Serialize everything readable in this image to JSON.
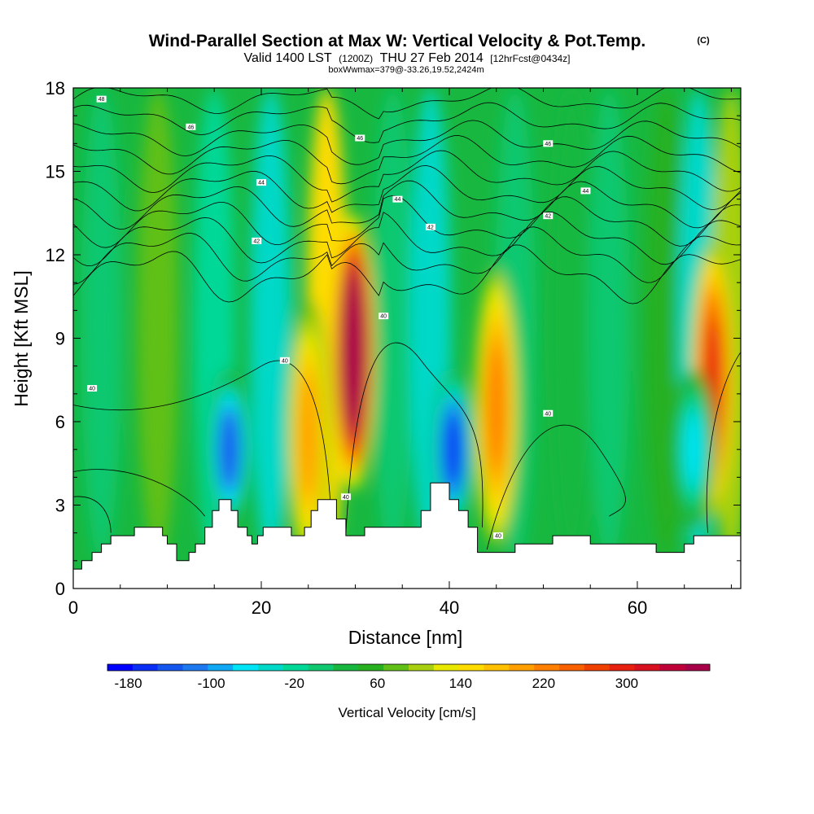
{
  "chart_data": {
    "type": "heatmap",
    "title": "Wind-Parallel Section at Max W: Vertical Velocity & Pot.Temp.",
    "copyright": "(C)",
    "subtitle": {
      "valid": "Valid 1400 LST",
      "utc": "(1200Z)",
      "date": "THU 27 Feb 2014",
      "forecast": "[12hrFcst@0434z]"
    },
    "box_info": "boxWwmax=379@-33.26,19.52,2424m",
    "xlabel": "Distance [nm]",
    "ylabel": "Height [Kft MSL]",
    "xlim": [
      0,
      71
    ],
    "ylim": [
      0,
      18
    ],
    "x_ticks": [
      0,
      20,
      40,
      60
    ],
    "y_ticks": [
      0,
      3,
      6,
      9,
      12,
      15,
      18
    ],
    "colorbar": {
      "title": "Vertical Velocity [cm/s]",
      "min": -200,
      "max": 380,
      "step": 20,
      "tick_values": [
        -180,
        -100,
        -20,
        60,
        140,
        220,
        300
      ],
      "colors": [
        "#0000ff",
        "#0a2ef5",
        "#1456ee",
        "#1e78f0",
        "#10a8f5",
        "#00e4f5",
        "#00d8c8",
        "#00d898",
        "#10c870",
        "#18b840",
        "#28b020",
        "#60c018",
        "#a8d010",
        "#e8e800",
        "#ffdc00",
        "#ffc000",
        "#ffa000",
        "#ff8000",
        "#f86000",
        "#f04000",
        "#e82010",
        "#d81020",
        "#c00038",
        "#a80048"
      ]
    },
    "terrain": [
      [
        0,
        0.7
      ],
      [
        0.9,
        0.7
      ],
      [
        0.9,
        1.0
      ],
      [
        2,
        1.0
      ],
      [
        2,
        1.3
      ],
      [
        3,
        1.3
      ],
      [
        3,
        1.6
      ],
      [
        4,
        1.6
      ],
      [
        4,
        1.9
      ],
      [
        6.5,
        1.9
      ],
      [
        6.5,
        2.2
      ],
      [
        9.5,
        2.2
      ],
      [
        9.5,
        1.9
      ],
      [
        10,
        1.9
      ],
      [
        10,
        1.6
      ],
      [
        11,
        1.6
      ],
      [
        11,
        1.0
      ],
      [
        12.3,
        1.0
      ],
      [
        12.3,
        1.3
      ],
      [
        13,
        1.3
      ],
      [
        13,
        1.6
      ],
      [
        14,
        1.6
      ],
      [
        14,
        2.2
      ],
      [
        14.8,
        2.2
      ],
      [
        14.8,
        2.8
      ],
      [
        15.5,
        2.8
      ],
      [
        15.5,
        3.2
      ],
      [
        16.8,
        3.2
      ],
      [
        16.8,
        2.8
      ],
      [
        17.5,
        2.8
      ],
      [
        17.5,
        2.2
      ],
      [
        18.5,
        2.2
      ],
      [
        18.5,
        1.9
      ],
      [
        19,
        1.9
      ],
      [
        19,
        1.6
      ],
      [
        19.6,
        1.6
      ],
      [
        19.6,
        1.9
      ],
      [
        20.2,
        1.9
      ],
      [
        20.2,
        2.2
      ],
      [
        23.2,
        2.2
      ],
      [
        23.2,
        1.9
      ],
      [
        24.6,
        1.9
      ],
      [
        24.6,
        2.2
      ],
      [
        25.3,
        2.2
      ],
      [
        25.3,
        2.8
      ],
      [
        26,
        2.8
      ],
      [
        26,
        3.2
      ],
      [
        28,
        3.2
      ],
      [
        28,
        2.5
      ],
      [
        29,
        2.5
      ],
      [
        29,
        1.9
      ],
      [
        31,
        1.9
      ],
      [
        31,
        2.2
      ],
      [
        37,
        2.2
      ],
      [
        37,
        2.8
      ],
      [
        38,
        2.8
      ],
      [
        38,
        3.8
      ],
      [
        40,
        3.8
      ],
      [
        40,
        3.2
      ],
      [
        41,
        3.2
      ],
      [
        41,
        2.8
      ],
      [
        42,
        2.8
      ],
      [
        42,
        2.2
      ],
      [
        43,
        2.2
      ],
      [
        43,
        1.3
      ],
      [
        47,
        1.3
      ],
      [
        47,
        1.6
      ],
      [
        51,
        1.6
      ],
      [
        51,
        1.9
      ],
      [
        55,
        1.9
      ],
      [
        55,
        1.6
      ],
      [
        62,
        1.6
      ],
      [
        62,
        1.3
      ],
      [
        65,
        1.3
      ],
      [
        65,
        1.6
      ],
      [
        66,
        1.6
      ],
      [
        66,
        1.9
      ],
      [
        71,
        1.9
      ]
    ],
    "features": [
      {
        "name": "updraft-main",
        "x": 29.8,
        "y": 8.5,
        "value": 379
      },
      {
        "name": "updraft-east",
        "x": 68.0,
        "y": 7.5,
        "value": 200
      },
      {
        "name": "updraft-2",
        "x": 45.0,
        "y": 6.5,
        "value": 140
      },
      {
        "name": "updraft-3",
        "x": 25.0,
        "y": 5.5,
        "value": 130
      },
      {
        "name": "downdraft-1",
        "x": 16.6,
        "y": 5.0,
        "value": -160
      },
      {
        "name": "downdraft-2",
        "x": 40.4,
        "y": 5.0,
        "value": -170
      },
      {
        "name": "downdraft-3",
        "x": 66.0,
        "y": 5.0,
        "value": -100
      }
    ],
    "contour_labels": [
      {
        "text": "48",
        "x": 3,
        "y": 17.6
      },
      {
        "text": "46",
        "x": 12.5,
        "y": 16.6
      },
      {
        "text": "46",
        "x": 30.5,
        "y": 16.2
      },
      {
        "text": "46",
        "x": 50.5,
        "y": 16.0
      },
      {
        "text": "44",
        "x": 20,
        "y": 14.6
      },
      {
        "text": "44",
        "x": 34.5,
        "y": 14.0
      },
      {
        "text": "44",
        "x": 54.5,
        "y": 14.3
      },
      {
        "text": "42",
        "x": 19.5,
        "y": 12.5
      },
      {
        "text": "42",
        "x": 38,
        "y": 13.0
      },
      {
        "text": "42",
        "x": 50.5,
        "y": 13.4
      },
      {
        "text": "40",
        "x": 33,
        "y": 9.8
      },
      {
        "text": "40",
        "x": 22.5,
        "y": 8.2
      },
      {
        "text": "40",
        "x": 2,
        "y": 7.2
      },
      {
        "text": "40",
        "x": 50.5,
        "y": 6.3
      },
      {
        "text": "40",
        "x": 29,
        "y": 3.3
      },
      {
        "text": "40",
        "x": 45.2,
        "y": 1.9
      }
    ]
  }
}
